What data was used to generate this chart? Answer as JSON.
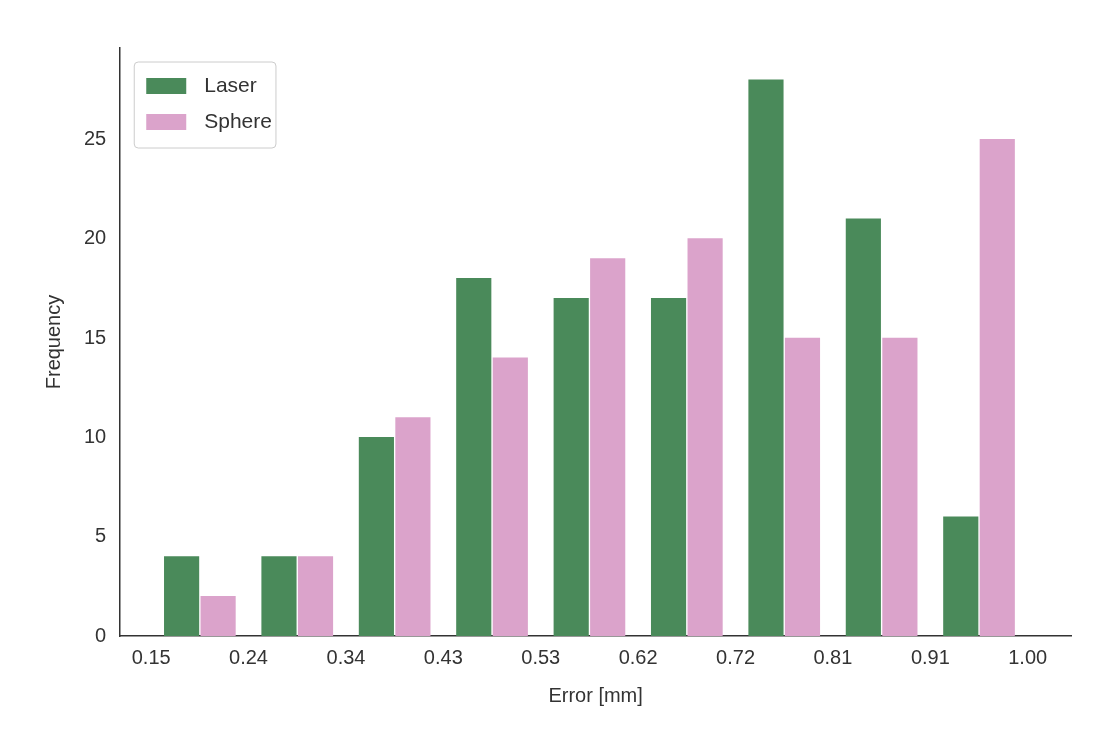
{
  "chart_data": {
    "type": "histogram",
    "xlabel": "Error [mm]",
    "ylabel": "Frequency",
    "bins": [
      0.15,
      0.2444,
      0.3389,
      0.4333,
      0.5278,
      0.6222,
      0.7167,
      0.8111,
      0.9056,
      1.0
    ],
    "series": [
      {
        "name": "Laser",
        "color": "#4a8a5a",
        "values": [
          4,
          4,
          10,
          18,
          17,
          17,
          28,
          21,
          6
        ]
      },
      {
        "name": "Sphere",
        "color": "#dba3cb",
        "values": [
          2,
          4,
          11,
          14,
          19,
          20,
          15,
          15,
          25
        ]
      }
    ],
    "xlim": [
      0.12,
      1.042
    ],
    "xticks": [
      0.15,
      {
        "value": 0.2444,
        "label": "0.24"
      },
      {
        "value": 0.3389,
        "label": "0.34"
      },
      {
        "value": 0.4333,
        "label": "0.43"
      },
      {
        "value": 0.5278,
        "label": "0.53"
      },
      {
        "value": 0.6222,
        "label": "0.62"
      },
      {
        "value": 0.7167,
        "label": "0.72"
      },
      {
        "value": 0.8111,
        "label": "0.81"
      },
      {
        "value": 0.9056,
        "label": "0.91"
      },
      {
        "value": 1.0,
        "label": "1.00"
      }
    ],
    "ylim": [
      0,
      29.6
    ],
    "yticks": [
      0,
      5,
      10,
      15,
      20,
      25
    ],
    "grid": false,
    "legend": "top left"
  }
}
